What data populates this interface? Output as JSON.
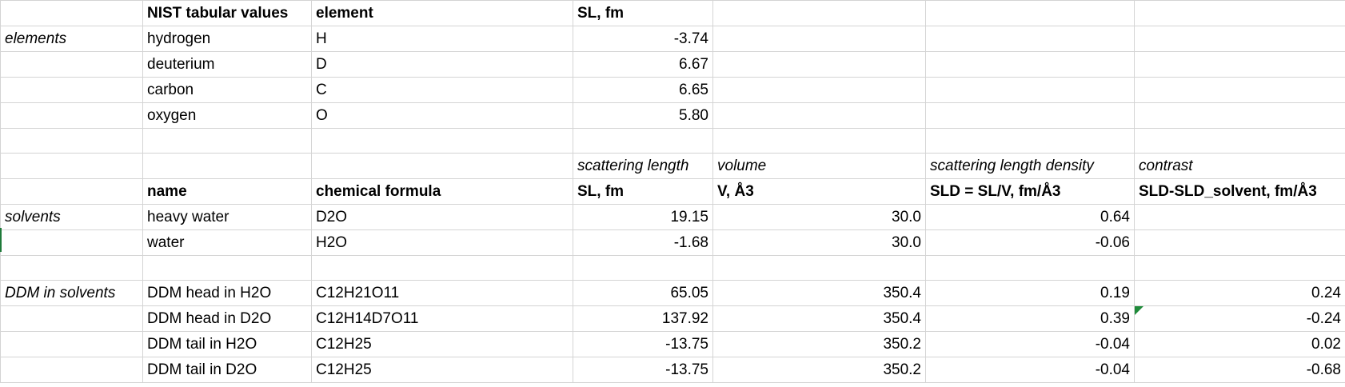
{
  "header_row": [
    "",
    "NIST tabular values",
    "element",
    "SL, fm",
    "",
    "",
    ""
  ],
  "rows": [
    [
      "elements",
      "hydrogen",
      "H",
      "-3.74",
      "",
      "",
      ""
    ],
    [
      "",
      "deuterium",
      "D",
      "6.67",
      "",
      "",
      ""
    ],
    [
      "",
      "carbon",
      "C",
      "6.65",
      "",
      "",
      ""
    ],
    [
      "",
      "oxygen",
      "O",
      "5.80",
      "",
      "",
      ""
    ],
    [
      "",
      "",
      "",
      "",
      "",
      "",
      ""
    ],
    [
      "",
      "",
      "",
      "scattering length",
      "volume",
      "scattering length density",
      "contrast"
    ],
    [
      "",
      "name",
      "chemical formula",
      "SL, fm",
      "V, Å3",
      "SLD = SL/V, fm/Å3",
      "SLD-SLD_solvent, fm/Å3"
    ],
    [
      "solvents",
      "heavy water",
      "D2O",
      "19.15",
      "30.0",
      "0.64",
      ""
    ],
    [
      "",
      "water",
      "H2O",
      "-1.68",
      "30.0",
      "-0.06",
      ""
    ],
    [
      "",
      "",
      "",
      "",
      "",
      "",
      ""
    ],
    [
      "DDM in solvents",
      "DDM head in H2O",
      "C12H21O11",
      "65.05",
      "350.4",
      "0.19",
      "0.24"
    ],
    [
      "",
      "DDM head in D2O",
      "C12H14D7O11",
      "137.92",
      "350.4",
      "0.39",
      "-0.24"
    ],
    [
      "",
      "DDM tail in H2O",
      "C12H25",
      "-13.75",
      "350.2",
      "-0.04",
      "0.02"
    ],
    [
      "",
      "DDM tail in D2O",
      "C12H25",
      "-13.75",
      "350.2",
      "-0.04",
      "-0.68"
    ]
  ],
  "colors": {
    "gridline": "#d4d4d4",
    "comment_marker": "#1f8b3a",
    "selection_marker": "#1f7a3a"
  }
}
